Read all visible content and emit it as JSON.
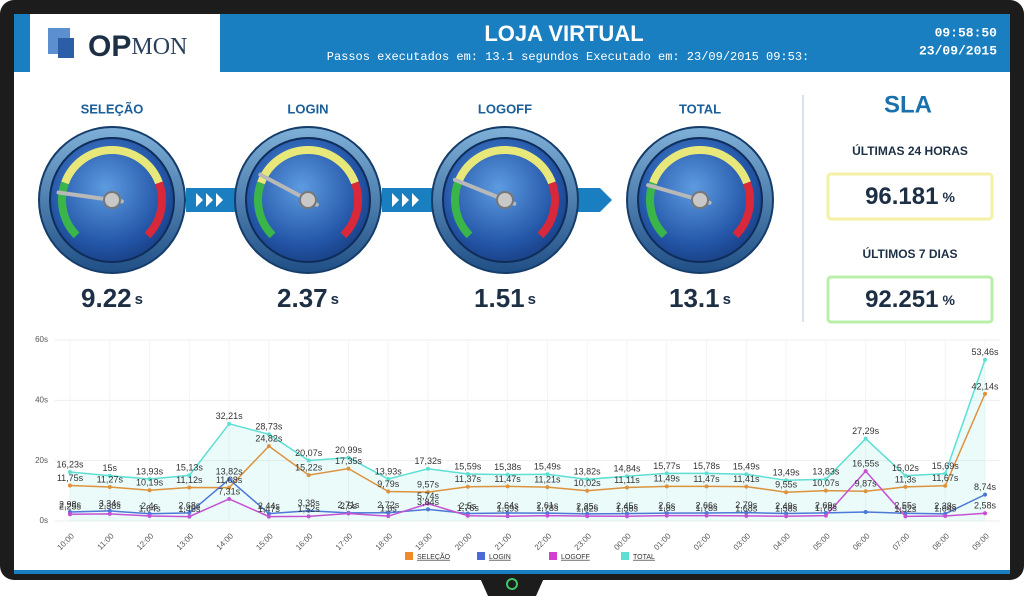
{
  "header": {
    "logo_a": "OP",
    "logo_b": "MON",
    "title": "LOJA VIRTUAL",
    "subtitle": "Passos executados em: 13.1 segundos Executado em: 23/09/2015 09:53:",
    "time": "09:58:50",
    "date": "23/09/2015"
  },
  "gauges": [
    {
      "label": "SELEÇÃO",
      "value": "9.22",
      "unit": "s"
    },
    {
      "label": "LOGIN",
      "value": "2.37",
      "unit": "s"
    },
    {
      "label": "LOGOFF",
      "value": "1.51",
      "unit": "s"
    },
    {
      "label": "TOTAL",
      "value": "13.1",
      "unit": "s"
    }
  ],
  "sla": {
    "title": "SLA",
    "items": [
      {
        "label": "ÚLTIMAS 24 HORAS",
        "value": "96.181",
        "unit": "%"
      },
      {
        "label": "ÚLTIMOS 7 DIAS",
        "value": "92.251",
        "unit": "%"
      }
    ]
  },
  "chart_data": {
    "type": "line",
    "categories": [
      "10:00",
      "11:00",
      "12:00",
      "13:00",
      "14:00",
      "15:00",
      "16:00",
      "17:00",
      "18:00",
      "19:00",
      "20:00",
      "21:00",
      "22:00",
      "23:00",
      "00:00",
      "01:00",
      "02:00",
      "03:00",
      "04:00",
      "05:00",
      "06:00",
      "07:00",
      "08:00",
      "09:00"
    ],
    "ylim": [
      0,
      60
    ],
    "yticks": [
      {
        "value": 0,
        "label": "0s"
      },
      {
        "value": 20,
        "label": "20s"
      },
      {
        "value": 40,
        "label": "40s"
      },
      {
        "value": 60,
        "label": "60s"
      }
    ],
    "grid": true,
    "series": [
      {
        "name": "SELEÇÃO",
        "color": "#f0892a",
        "values": [
          11.75,
          11.27,
          10.19,
          11.12,
          11.08,
          24.82,
          15.22,
          17.35,
          9.79,
          9.57,
          11.37,
          11.47,
          11.21,
          10.02,
          11.11,
          11.49,
          11.47,
          11.41,
          9.55,
          10.07,
          9.87,
          11.3,
          11.67,
          42.14
        ],
        "value_labels": [
          "11,75s",
          "11,27s",
          "10,19s",
          "11,12s",
          "11,08s",
          "24,82s",
          "15,22s",
          "17,35s",
          "9,79s",
          "9,57s",
          "11,37s",
          "11,47s",
          "11,21s",
          "10,02s",
          "11,11s",
          "11,49s",
          "11,47s",
          "11,41s",
          "9,55s",
          "10,07s",
          "9,87s",
          "11,3s",
          "11,67s",
          "42,14s"
        ]
      },
      {
        "name": "LOGIN",
        "color": "#4a6ad8",
        "values": [
          2.98,
          3.34,
          2.4,
          2.68,
          13.82,
          2.44,
          3.38,
          2.71,
          2.72,
          3.84,
          2.5,
          2.64,
          2.61,
          2.35,
          2.45,
          2.6,
          2.66,
          2.79,
          2.49,
          2.69,
          3,
          2.55,
          2.38,
          8.74
        ],
        "value_labels": [
          "2,98s",
          "3,34s",
          "2,4s",
          "2,68s",
          "13,82s",
          "2,44s",
          "3,38s",
          "2,71s",
          "2,72s",
          "3,84s",
          "2,5s",
          "2,64s",
          "2,61s",
          "2,35s",
          "2,45s",
          "2,6s",
          "2,66s",
          "2,79s",
          "2,49s",
          "2,69s",
          null,
          "2,55s",
          "2,38s",
          "8,74s"
        ]
      },
      {
        "name": "LOGOFF",
        "color": "#d43fd2",
        "values": [
          2.25,
          2.38,
          1.64,
          1.46,
          7.31,
          1.47,
          1.52,
          2.5,
          1.6,
          5.74,
          1.76,
          1.59,
          1.78,
          1.62,
          1.58,
          1.8,
          1.78,
          1.68,
          1.58,
          1.78,
          16.55,
          1.52,
          1.64,
          2.58
        ],
        "value_labels": [
          "2,25s",
          "2,38s",
          "1,64s",
          "1,46s",
          "7,31s",
          "1,47s",
          "1,52s",
          "2,5s",
          "1,6s",
          "5,74s",
          "1,76s",
          "1,59s",
          "1,78s",
          "1,62s",
          "1,58s",
          "1,8s",
          "1,78s",
          "1,68s",
          "1,58s",
          "1,78s",
          "16,55s",
          "1,52s",
          "1,64s",
          "2,58s"
        ]
      },
      {
        "name": "TOTAL",
        "color": "#5ddfd4",
        "values": [
          16.23,
          15,
          13.93,
          15.13,
          32.21,
          28.73,
          20.07,
          20.99,
          13.93,
          17.32,
          15.59,
          15.38,
          15.49,
          13.82,
          14.84,
          15.77,
          15.78,
          15.49,
          13.49,
          13.83,
          27.29,
          15.02,
          15.69,
          53.46
        ],
        "value_labels": [
          "16,23s",
          "15s",
          "13,93s",
          "15,13s",
          "32,21s",
          "28,73s",
          "20,07s",
          "20,99s",
          "13,93s",
          "17,32s",
          "15,59s",
          "15,38s",
          "15,49s",
          "13,82s",
          "14,84s",
          "15,77s",
          "15,78s",
          "15,49s",
          "13,49s",
          "13,83s",
          "27,29s",
          "15,02s",
          "15,69s",
          "53,46s"
        ]
      }
    ]
  }
}
